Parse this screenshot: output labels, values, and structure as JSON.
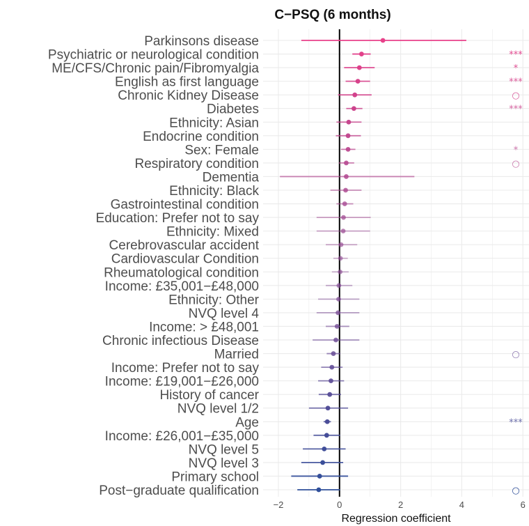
{
  "chart_data": {
    "type": "scatter",
    "title": "C−PSQ (6 months)",
    "xlabel": "Regression coefficient",
    "ylabel": "",
    "xlim": [
      -2.5,
      6.2
    ],
    "xticks": [
      -2,
      0,
      2,
      4,
      6
    ],
    "xtick_labels": [
      "−2",
      "0",
      "2",
      "4",
      "6"
    ],
    "grid": true,
    "legend": "none",
    "point_colors": {
      "positive": "#e8418a",
      "negative": "#2f4f9a"
    },
    "items": [
      {
        "label": "Parkinsons disease",
        "estimate": 1.42,
        "low": -1.25,
        "high": 4.15,
        "sig": ""
      },
      {
        "label": "Psychiatric or neurological condition",
        "estimate": 0.72,
        "low": 0.42,
        "high": 1.02,
        "sig": "***"
      },
      {
        "label": "ME/CFS/Chronic pain/Fibromyalgia",
        "estimate": 0.65,
        "low": 0.15,
        "high": 1.15,
        "sig": "*"
      },
      {
        "label": "English as first language",
        "estimate": 0.6,
        "low": 0.2,
        "high": 1.0,
        "sig": "***"
      },
      {
        "label": "Chronic Kidney Disease",
        "estimate": 0.5,
        "low": -0.05,
        "high": 1.05,
        "sig": "○"
      },
      {
        "label": "Diabetes",
        "estimate": 0.47,
        "low": 0.22,
        "high": 0.75,
        "sig": "***"
      },
      {
        "label": "Ethnicity: Asian",
        "estimate": 0.3,
        "low": -0.1,
        "high": 0.72,
        "sig": ""
      },
      {
        "label": "Endocrine condition",
        "estimate": 0.28,
        "low": -0.12,
        "high": 0.7,
        "sig": ""
      },
      {
        "label": "Sex: Female",
        "estimate": 0.28,
        "low": 0.05,
        "high": 0.52,
        "sig": "*"
      },
      {
        "label": "Respiratory condition",
        "estimate": 0.22,
        "low": -0.02,
        "high": 0.48,
        "sig": "○"
      },
      {
        "label": "Dementia",
        "estimate": 0.22,
        "low": -1.95,
        "high": 2.45,
        "sig": ""
      },
      {
        "label": "Ethnicity: Black",
        "estimate": 0.2,
        "low": -0.3,
        "high": 0.72,
        "sig": ""
      },
      {
        "label": "Gastrointestinal condition",
        "estimate": 0.17,
        "low": -0.1,
        "high": 0.45,
        "sig": ""
      },
      {
        "label": "Education: Prefer not to say",
        "estimate": 0.13,
        "low": -0.75,
        "high": 1.02,
        "sig": ""
      },
      {
        "label": "Ethnicity: Mixed",
        "estimate": 0.12,
        "low": -0.75,
        "high": 1.0,
        "sig": ""
      },
      {
        "label": "Cerebrovascular accident",
        "estimate": 0.05,
        "low": -0.45,
        "high": 0.58,
        "sig": ""
      },
      {
        "label": "Cardiovascular Condition",
        "estimate": 0.03,
        "low": -0.2,
        "high": 0.27,
        "sig": ""
      },
      {
        "label": "Rheumatological condition",
        "estimate": 0.02,
        "low": -0.25,
        "high": 0.3,
        "sig": ""
      },
      {
        "label": "Income: £35,001−£48,000",
        "estimate": -0.02,
        "low": -0.45,
        "high": 0.42,
        "sig": ""
      },
      {
        "label": "Ethnicity: Other",
        "estimate": -0.03,
        "low": -0.7,
        "high": 0.65,
        "sig": ""
      },
      {
        "label": "NVQ level 4",
        "estimate": -0.05,
        "low": -0.75,
        "high": 0.65,
        "sig": ""
      },
      {
        "label": "Income: > £48,001",
        "estimate": -0.08,
        "low": -0.45,
        "high": 0.32,
        "sig": ""
      },
      {
        "label": "Chronic infectious Disease",
        "estimate": -0.12,
        "low": -0.88,
        "high": 0.65,
        "sig": ""
      },
      {
        "label": "Married",
        "estimate": -0.2,
        "low": -0.42,
        "high": 0.03,
        "sig": "○"
      },
      {
        "label": "Income: Prefer not to say",
        "estimate": -0.25,
        "low": -0.6,
        "high": 0.1,
        "sig": ""
      },
      {
        "label": "Income: £19,001−£26,000",
        "estimate": -0.28,
        "low": -0.7,
        "high": 0.15,
        "sig": ""
      },
      {
        "label": "History of cancer",
        "estimate": -0.32,
        "low": -0.68,
        "high": 0.05,
        "sig": ""
      },
      {
        "label": "NVQ level 1/2",
        "estimate": -0.38,
        "low": -1.0,
        "high": 0.28,
        "sig": ""
      },
      {
        "label": "Age",
        "estimate": -0.4,
        "low": -0.52,
        "high": -0.28,
        "sig": "***"
      },
      {
        "label": "Income: £26,001−£35,000",
        "estimate": -0.42,
        "low": -0.85,
        "high": 0.02,
        "sig": ""
      },
      {
        "label": "NVQ level 5",
        "estimate": -0.5,
        "low": -1.2,
        "high": 0.2,
        "sig": ""
      },
      {
        "label": "NVQ level 3",
        "estimate": -0.55,
        "low": -1.25,
        "high": 0.12,
        "sig": ""
      },
      {
        "label": "Primary school",
        "estimate": -0.65,
        "low": -1.58,
        "high": 0.28,
        "sig": ""
      },
      {
        "label": "Post−graduate qualification",
        "estimate": -0.68,
        "low": -1.38,
        "high": 0.02,
        "sig": "○"
      }
    ]
  }
}
